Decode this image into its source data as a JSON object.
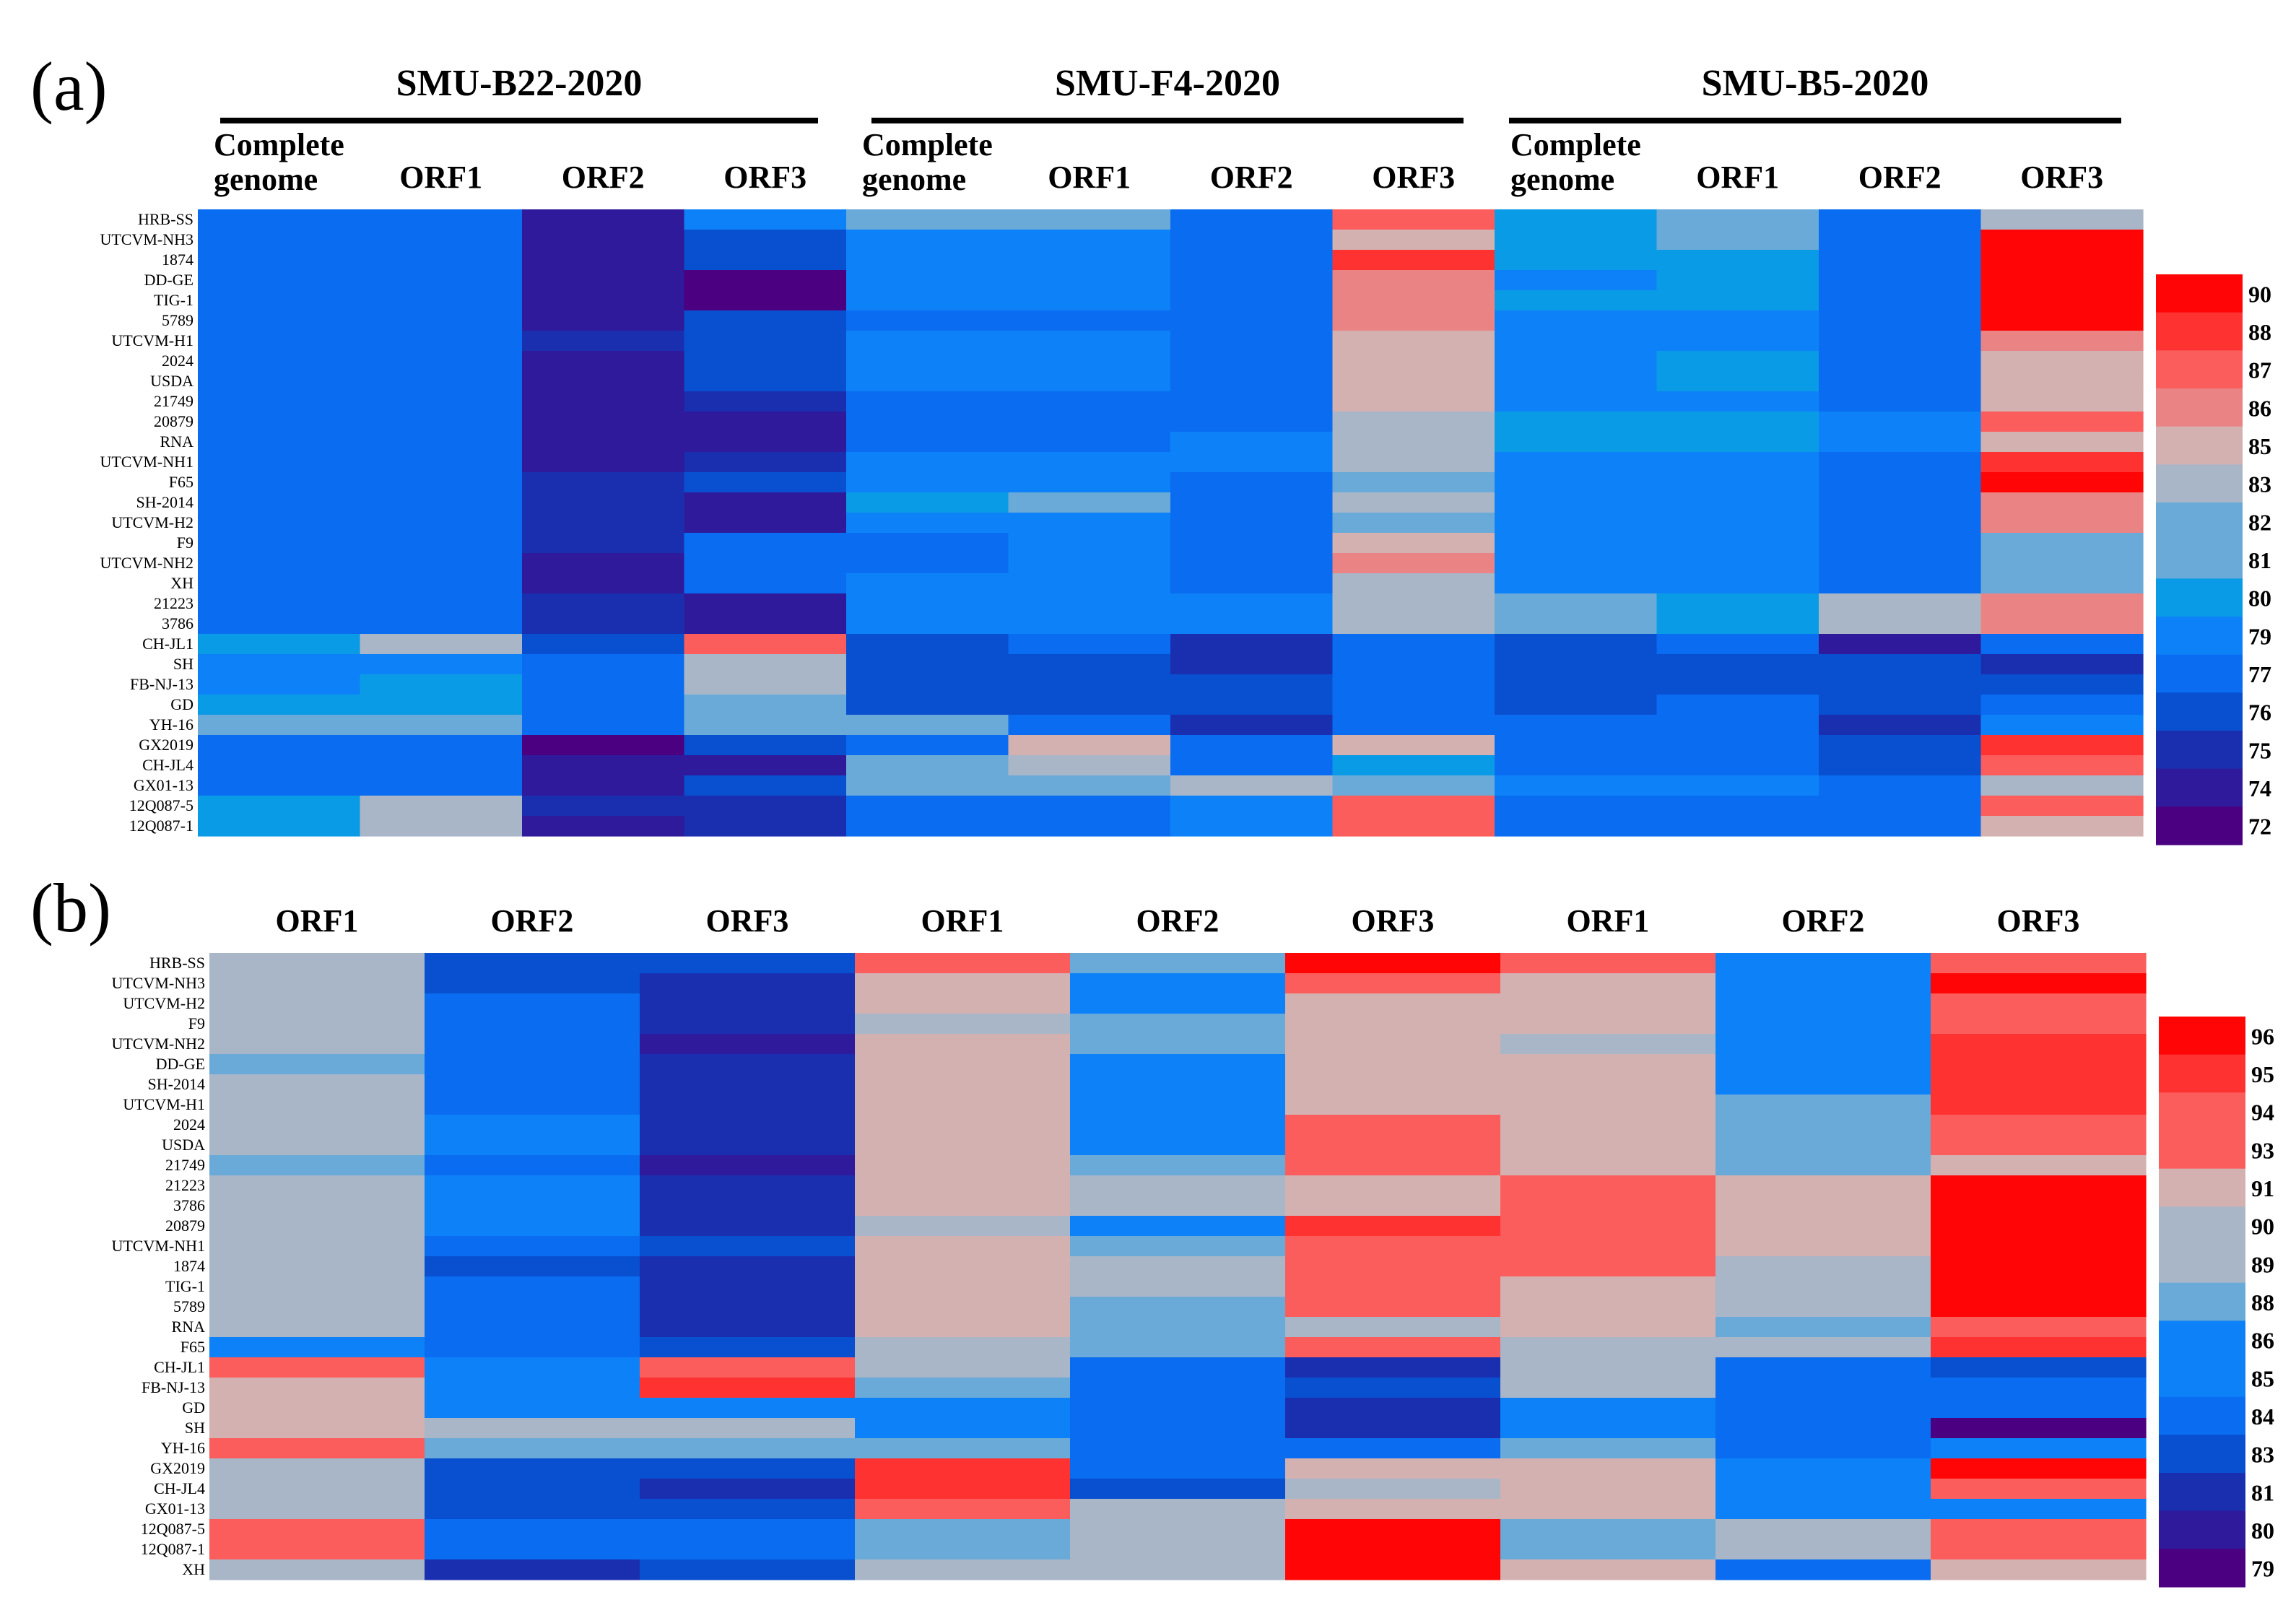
{
  "chart_data": [
    {
      "type": "heatmap",
      "panel_label": "(a)",
      "groups": [
        {
          "name": "SMU-B22-2020",
          "columns": [
            "Complete\ngenome",
            "ORF1",
            "ORF2",
            "ORF3"
          ]
        },
        {
          "name": "SMU-F4-2020",
          "columns": [
            "Complete\ngenome",
            "ORF1",
            "ORF2",
            "ORF3"
          ]
        },
        {
          "name": "SMU-B5-2020",
          "columns": [
            "Complete\ngenome",
            "ORF1",
            "ORF2",
            "ORF3"
          ]
        }
      ],
      "rows": [
        "HRB-SS",
        "UTCVM-NH3",
        "1874",
        "DD-GE",
        "TIG-1",
        "5789",
        "UTCVM-H1",
        "2024",
        "USDA",
        "21749",
        "20879",
        "RNA",
        "UTCVM-NH1",
        "F65",
        "SH-2014",
        "UTCVM-H2",
        "F9",
        "UTCVM-NH2",
        "XH",
        "21223",
        "3786",
        "CH-JL1",
        "SH",
        "FB-NJ-13",
        "GD",
        "YH-16",
        "GX2019",
        "CH-JL4",
        "GX01-13",
        "12Q087-5",
        "12Q087-1"
      ],
      "values": [
        [
          78,
          78,
          74,
          79,
          81,
          82,
          77,
          87,
          80,
          81,
          77,
          83
        ],
        [
          78,
          78,
          74,
          76,
          79,
          79,
          77,
          84,
          80,
          81,
          77,
          90
        ],
        [
          77,
          77,
          74,
          76,
          79,
          79,
          77,
          88,
          80,
          80,
          77,
          90
        ],
        [
          77,
          77,
          74,
          72,
          79,
          79,
          77,
          86,
          79,
          80,
          77,
          90
        ],
        [
          77,
          78,
          74,
          72,
          79,
          79,
          77,
          86,
          80,
          80,
          77,
          90
        ],
        [
          77,
          77,
          74,
          76,
          78,
          78,
          77,
          86,
          79,
          79,
          77,
          90
        ],
        [
          77,
          77,
          75,
          76,
          79,
          79,
          78,
          84,
          79,
          79,
          77,
          86
        ],
        [
          78,
          78,
          74,
          76,
          79,
          79,
          77,
          84,
          79,
          80,
          77,
          85
        ],
        [
          78,
          78,
          74,
          76,
          79,
          79,
          77,
          84,
          79,
          80,
          77,
          85
        ],
        [
          77,
          77,
          74,
          75,
          78,
          78,
          77,
          85,
          79,
          79,
          77,
          85
        ],
        [
          78,
          78,
          74,
          74,
          78,
          78,
          77,
          83,
          80,
          80,
          79,
          87
        ],
        [
          78,
          78,
          74,
          74,
          78,
          78,
          79,
          83,
          80,
          80,
          79,
          85
        ],
        [
          78,
          78,
          74,
          75,
          79,
          79,
          79,
          83,
          79,
          79,
          77,
          88
        ],
        [
          77,
          78,
          75,
          76,
          79,
          79,
          77,
          82,
          79,
          79,
          77,
          90
        ],
        [
          77,
          78,
          75,
          74,
          80,
          81,
          77,
          83,
          79,
          79,
          77,
          86
        ],
        [
          77,
          77,
          75,
          74,
          79,
          79,
          77,
          81,
          79,
          79,
          77,
          86
        ],
        [
          77,
          77,
          75,
          77,
          78,
          79,
          77,
          85,
          79,
          79,
          77,
          82
        ],
        [
          77,
          77,
          74,
          77,
          78,
          79,
          77,
          86,
          79,
          79,
          77,
          82
        ],
        [
          77,
          78,
          74,
          77,
          79,
          79,
          77,
          83,
          79,
          79,
          77,
          82
        ],
        [
          77,
          77,
          75,
          74,
          79,
          79,
          79,
          83,
          81,
          80,
          83,
          86
        ],
        [
          77,
          77,
          75,
          74,
          79,
          79,
          79,
          83,
          81,
          80,
          83,
          86
        ],
        [
          80,
          83,
          76,
          87,
          76,
          77,
          75,
          77,
          76,
          77,
          74,
          77
        ],
        [
          79,
          79,
          78,
          83,
          76,
          76,
          75,
          77,
          76,
          76,
          76,
          75
        ],
        [
          79,
          80,
          78,
          83,
          76,
          76,
          76,
          77,
          76,
          76,
          76,
          76
        ],
        [
          80,
          80,
          78,
          82,
          76,
          76,
          76,
          77,
          76,
          77,
          76,
          77
        ],
        [
          81,
          82,
          78,
          82,
          81,
          77,
          75,
          78,
          77,
          77,
          75,
          79
        ],
        [
          77,
          78,
          72,
          76,
          77,
          85,
          77,
          85,
          77,
          77,
          76,
          88
        ],
        [
          78,
          78,
          74,
          74,
          82,
          83,
          77,
          80,
          77,
          77,
          76,
          87
        ],
        [
          78,
          78,
          74,
          76,
          81,
          81,
          83,
          81,
          79,
          79,
          77,
          83
        ],
        [
          80,
          83,
          75,
          75,
          78,
          78,
          79,
          87,
          77,
          77,
          77,
          87
        ],
        [
          80,
          83,
          74,
          75,
          78,
          78,
          79,
          87,
          77,
          77,
          77,
          85
        ]
      ],
      "colorbar_ticks": [
        90,
        88,
        87,
        86,
        85,
        83,
        82,
        81,
        80,
        79,
        77,
        76,
        75,
        74,
        72
      ]
    },
    {
      "type": "heatmap",
      "panel_label": "(b)",
      "columns": [
        "ORF1",
        "ORF2",
        "ORF3",
        "ORF1",
        "ORF2",
        "ORF3",
        "ORF1",
        "ORF2",
        "ORF3"
      ],
      "rows": [
        "HRB-SS",
        "UTCVM-NH3",
        "UTCVM-H2",
        "F9",
        "UTCVM-NH2",
        "DD-GE",
        "SH-2014",
        "UTCVM-H1",
        "2024",
        "USDA",
        "21749",
        "21223",
        "3786",
        "20879",
        "UTCVM-NH1",
        "1874",
        "TIG-1",
        "5789",
        "RNA",
        "F65",
        "CH-JL1",
        "FB-NJ-13",
        "GD",
        "SH",
        "YH-16",
        "GX2019",
        "CH-JL4",
        "GX01-13",
        "12Q087-5",
        "12Q087-1",
        "XH"
      ],
      "values": [
        [
          90,
          83,
          83,
          93,
          88,
          96,
          93,
          86,
          94
        ],
        [
          89,
          83,
          81,
          91,
          86,
          94,
          91,
          86,
          96
        ],
        [
          89,
          84,
          81,
          91,
          86,
          91,
          91,
          85,
          94
        ],
        [
          89,
          84,
          81,
          90,
          88,
          91,
          91,
          86,
          93
        ],
        [
          89,
          84,
          80,
          91,
          88,
          91,
          90,
          86,
          95
        ],
        [
          88,
          84,
          81,
          91,
          86,
          91,
          91,
          86,
          95
        ],
        [
          89,
          84,
          81,
          91,
          86,
          91,
          91,
          86,
          95
        ],
        [
          89,
          84,
          81,
          91,
          86,
          91,
          91,
          88,
          95
        ],
        [
          90,
          85,
          81,
          91,
          86,
          94,
          91,
          88,
          94
        ],
        [
          90,
          85,
          81,
          91,
          86,
          94,
          91,
          88,
          94
        ],
        [
          88,
          84,
          80,
          91,
          88,
          93,
          91,
          88,
          91
        ],
        [
          89,
          85,
          81,
          91,
          90,
          91,
          93,
          91,
          96
        ],
        [
          89,
          85,
          81,
          91,
          90,
          91,
          93,
          91,
          96
        ],
        [
          89,
          85,
          81,
          90,
          86,
          95,
          93,
          91,
          96
        ],
        [
          90,
          84,
          83,
          91,
          88,
          93,
          93,
          91,
          96
        ],
        [
          89,
          83,
          81,
          91,
          89,
          94,
          93,
          89,
          96
        ],
        [
          89,
          84,
          81,
          91,
          90,
          94,
          91,
          89,
          96
        ],
        [
          89,
          84,
          81,
          91,
          88,
          94,
          91,
          90,
          96
        ],
        [
          89,
          84,
          81,
          91,
          88,
          89,
          91,
          88,
          94
        ],
        [
          86,
          84,
          83,
          90,
          88,
          93,
          90,
          89,
          95
        ],
        [
          94,
          86,
          93,
          89,
          84,
          81,
          89,
          84,
          83
        ],
        [
          91,
          86,
          95,
          88,
          84,
          83,
          89,
          84,
          84
        ],
        [
          91,
          86,
          86,
          86,
          84,
          81,
          86,
          84,
          84
        ],
        [
          91,
          89,
          89,
          86,
          84,
          81,
          86,
          84,
          79
        ],
        [
          93,
          88,
          88,
          88,
          84,
          84,
          88,
          84,
          85
        ],
        [
          89,
          83,
          83,
          95,
          84,
          91,
          91,
          86,
          96
        ],
        [
          89,
          83,
          81,
          95,
          83,
          90,
          91,
          86,
          94
        ],
        [
          89,
          83,
          83,
          93,
          90,
          91,
          91,
          85,
          85
        ],
        [
          94,
          84,
          84,
          88,
          89,
          96,
          88,
          89,
          94
        ],
        [
          93,
          84,
          84,
          88,
          89,
          96,
          88,
          89,
          94
        ],
        [
          89,
          81,
          83,
          90,
          89,
          96,
          91,
          84,
          91
        ]
      ],
      "colorbar_ticks": [
        96,
        95,
        94,
        93,
        91,
        90,
        89,
        88,
        86,
        85,
        84,
        83,
        81,
        80,
        79
      ]
    }
  ]
}
